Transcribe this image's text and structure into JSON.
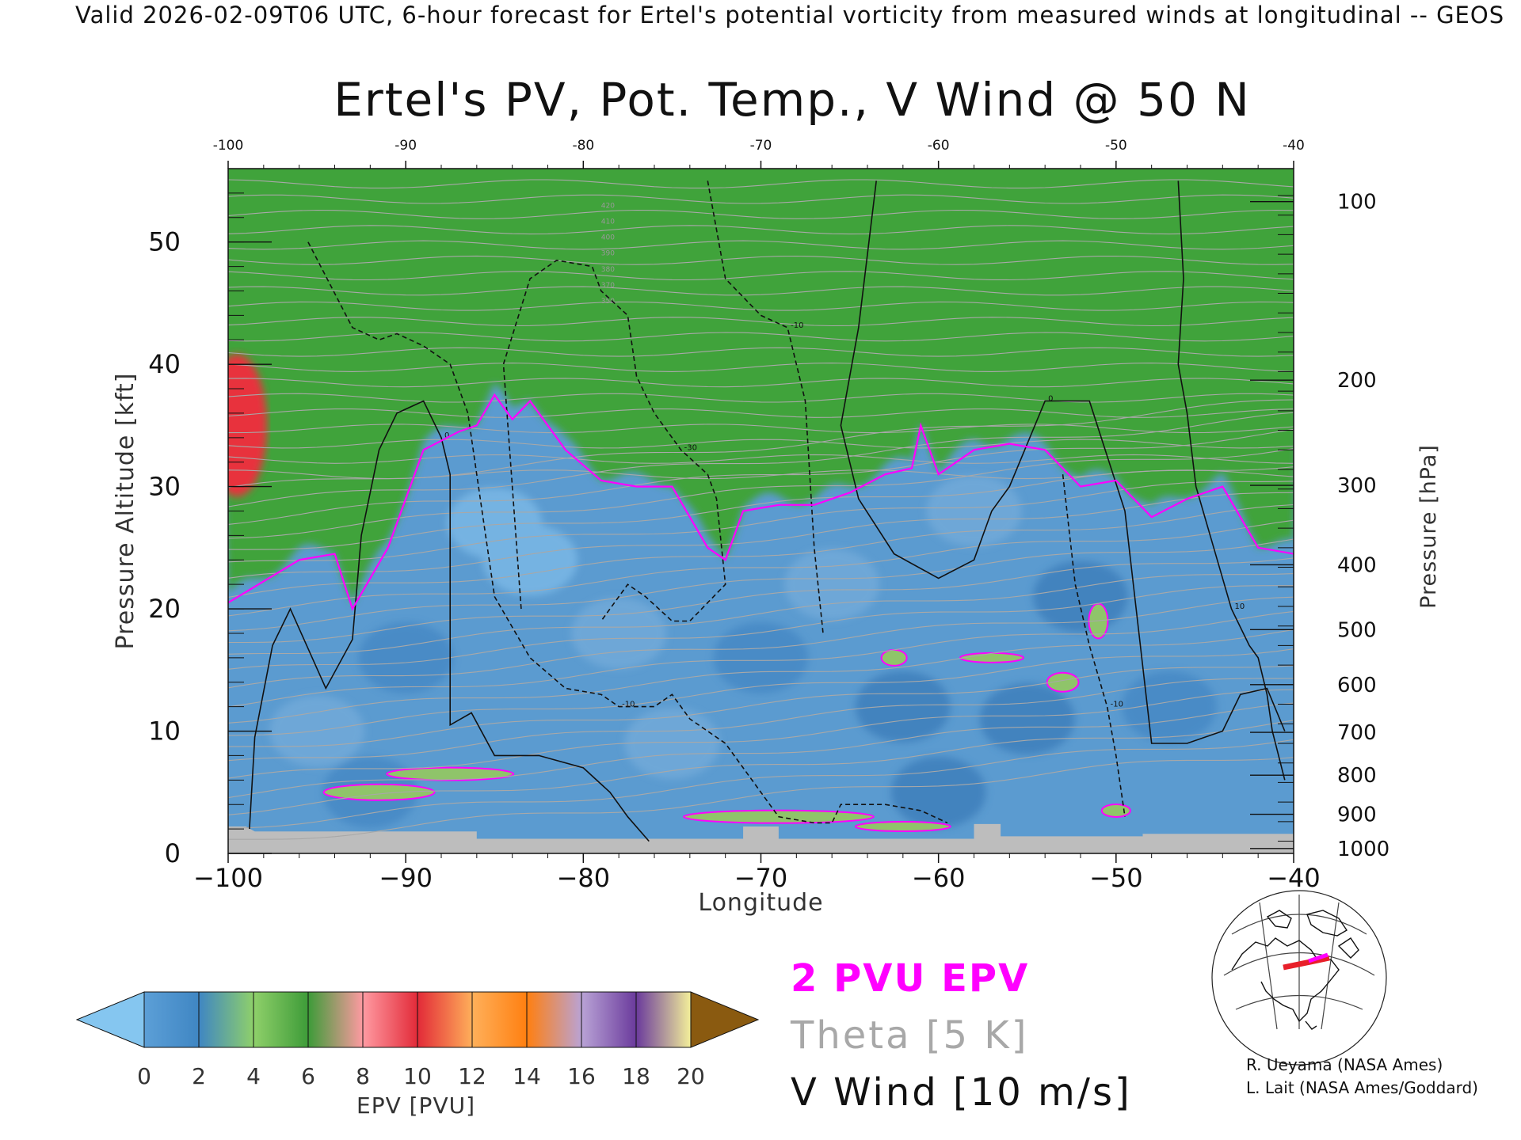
{
  "header": {
    "valid_line": "Valid 2026-02-09T06 UTC, 6-hour forecast for Ertel's potential vorticity from measured winds at longitudinal -- GEOS"
  },
  "chart_data": {
    "type": "heatmap",
    "title": "Ertel's PV, Pot. Temp., V Wind @ 50 N",
    "xlabel": "Longitude",
    "ylabel": "Pressure Altitude [kft]",
    "ylabel_right": "Pressure [hPa]",
    "xlim": [
      -100,
      -40
    ],
    "ylim": [
      0,
      56
    ],
    "x_ticks": [
      -100,
      -90,
      -80,
      -70,
      -60,
      -50,
      -40
    ],
    "x_tick_labels": [
      "−100",
      "−90",
      "−80",
      "−70",
      "−60",
      "−50",
      "−40"
    ],
    "top_tick_labels": [
      "-100",
      "-90",
      "-80",
      "-70",
      "-60",
      "-50",
      "-40"
    ],
    "y_ticks": [
      0,
      10,
      20,
      30,
      40,
      50
    ],
    "pressure_ticks": [
      {
        "hPa": 100,
        "kft": 53.3
      },
      {
        "hPa": 200,
        "kft": 38.7
      },
      {
        "hPa": 300,
        "kft": 30.1
      },
      {
        "hPa": 400,
        "kft": 23.6
      },
      {
        "hPa": 500,
        "kft": 18.3
      },
      {
        "hPa": 600,
        "kft": 13.8
      },
      {
        "hPa": 700,
        "kft": 9.9
      },
      {
        "hPa": 800,
        "kft": 6.4
      },
      {
        "hPa": 900,
        "kft": 3.2
      },
      {
        "hPa": 1000,
        "kft": 0.4
      }
    ],
    "epv_layers": [
      {
        "name": "stratosphere-top",
        "color": "#ff8c1a"
      },
      {
        "name": "stratosphere-mid",
        "color": "#e8323c"
      },
      {
        "name": "transition",
        "color": "#3fa33a"
      },
      {
        "name": "troposphere",
        "color": "#5b9bd0"
      }
    ],
    "pvu2_contour": {
      "lon": [
        -100,
        -96,
        -94,
        -93,
        -91,
        -89,
        -87,
        -86,
        -85,
        -84,
        -83,
        -81,
        -79,
        -77,
        -75,
        -73,
        -72,
        -71,
        -69,
        -67,
        -65,
        -63,
        -61.5,
        -61,
        -60,
        -58,
        -56,
        -54,
        -52,
        -50,
        -48,
        -46,
        -44,
        -42,
        -40
      ],
      "kft": [
        20.5,
        24,
        24.5,
        20,
        25,
        33,
        34.5,
        35,
        37.5,
        35.5,
        37,
        33,
        30.5,
        30,
        30,
        25,
        24,
        28,
        28.5,
        28.5,
        29.5,
        31,
        31.5,
        35,
        31,
        33,
        33.5,
        33,
        30,
        30.5,
        27.5,
        29,
        30,
        25,
        24.5
      ]
    },
    "v_wind_contours": [
      {
        "label": "0",
        "style": "solid",
        "lon": [
          -98.8,
          -98.5,
          -97.5,
          -96.5,
          -94.5,
          -93,
          -92.5,
          -91.5,
          -90.5,
          -89,
          -88,
          -87.5,
          -87.5,
          -86.3,
          -85,
          -82.5,
          -80,
          -78.5,
          -77.5,
          -76.3
        ],
        "kft": [
          2,
          9.5,
          17,
          20,
          13.5,
          17.5,
          26,
          33,
          36,
          37,
          34,
          31,
          10.5,
          11.5,
          8,
          8,
          7,
          5,
          3,
          1
        ]
      },
      {
        "label": "0",
        "style": "solid",
        "lon": [
          -63.5,
          -64.5,
          -65.5,
          -64.5,
          -62.5,
          -60,
          -58,
          -57,
          -56,
          -54,
          -51.5,
          -49.5,
          -48,
          -46,
          -44,
          -43,
          -41.5,
          -40.5
        ],
        "kft": [
          55,
          43,
          35,
          29,
          24.5,
          22.5,
          24,
          28,
          30,
          37,
          37,
          28,
          9,
          9,
          10,
          13,
          13.5,
          10
        ]
      },
      {
        "label": "10",
        "style": "solid",
        "lon": [
          -46.5,
          -46.2,
          -46.5,
          -46,
          -45.5,
          -44.5,
          -43.5,
          -42.5,
          -42,
          -41.5,
          -41.2,
          -40.5
        ],
        "kft": [
          55,
          47,
          40,
          36,
          30,
          25,
          20,
          17,
          16,
          13,
          10,
          6
        ]
      },
      {
        "label": "-30",
        "style": "dashed",
        "lon": [
          -83.5,
          -84.5,
          -83,
          -81.5,
          -79.5,
          -79,
          -77.5,
          -77,
          -76,
          -74.5,
          -73,
          -72.5,
          -72,
          -74,
          -75,
          -76.5,
          -77.5,
          -79
        ],
        "kft": [
          20,
          40,
          47,
          48.5,
          48,
          46,
          44,
          39,
          36,
          33,
          31,
          29,
          22,
          19,
          19,
          21,
          22,
          19
        ]
      },
      {
        "label": "-10",
        "style": "dashed",
        "lon": [
          -95.5,
          -93,
          -91.5,
          -90.5,
          -89,
          -87.5,
          -86.5,
          -86,
          -85.5,
          -85,
          -83,
          -81,
          -79,
          -78,
          -76,
          -75,
          -74,
          -72,
          -71,
          -70,
          -69,
          -67,
          -66,
          -65.5,
          -63,
          -61,
          -59.5
        ],
        "kft": [
          50,
          43,
          42,
          42.5,
          41.5,
          40,
          36,
          31,
          26,
          21,
          16,
          13.5,
          13,
          12,
          12,
          13,
          11,
          9,
          7,
          5,
          3,
          2.5,
          2.5,
          4,
          4,
          3.5,
          2.5
        ]
      },
      {
        "label": "-10",
        "style": "dashed",
        "lon": [
          -73,
          -72,
          -70,
          -68.5,
          -67.5,
          -67,
          -66.5
        ],
        "kft": [
          55,
          47,
          44,
          43,
          37,
          25,
          18
        ]
      },
      {
        "label": "-10",
        "style": "dashed",
        "lon": [
          -53,
          -52.3,
          -51.5,
          -50.5,
          -50,
          -49.5
        ],
        "kft": [
          31,
          22,
          17,
          12,
          8,
          3
        ]
      }
    ],
    "theta_interval_K": 5,
    "theta_labels": [
      "350",
      "370",
      "380",
      "390",
      "400",
      "410",
      "420"
    ],
    "colorbar": {
      "label": "EPV [PVU]",
      "ticks": [
        0,
        2,
        4,
        6,
        8,
        10,
        12,
        14,
        16,
        18,
        20
      ],
      "colors": [
        "#5c9fd7",
        "#3f86c3",
        "#8fd06a",
        "#3d9b38",
        "#ff9aa2",
        "#e22a38",
        "#ffb05a",
        "#ff7f10",
        "#b9a3d6",
        "#6a3a9c",
        "#f4f09a",
        "#c48a45"
      ],
      "under_color": "#85c6f0",
      "over_color": "#8a5a10"
    }
  },
  "legend": {
    "pvu": "2 PVU EPV",
    "theta": "Theta [5 K]",
    "wind": "V Wind [10 m/s]"
  },
  "credits": {
    "line1": "R. Ueyama (NASA Ames)",
    "line2": "L. Lait (NASA Ames/Goddard)"
  }
}
